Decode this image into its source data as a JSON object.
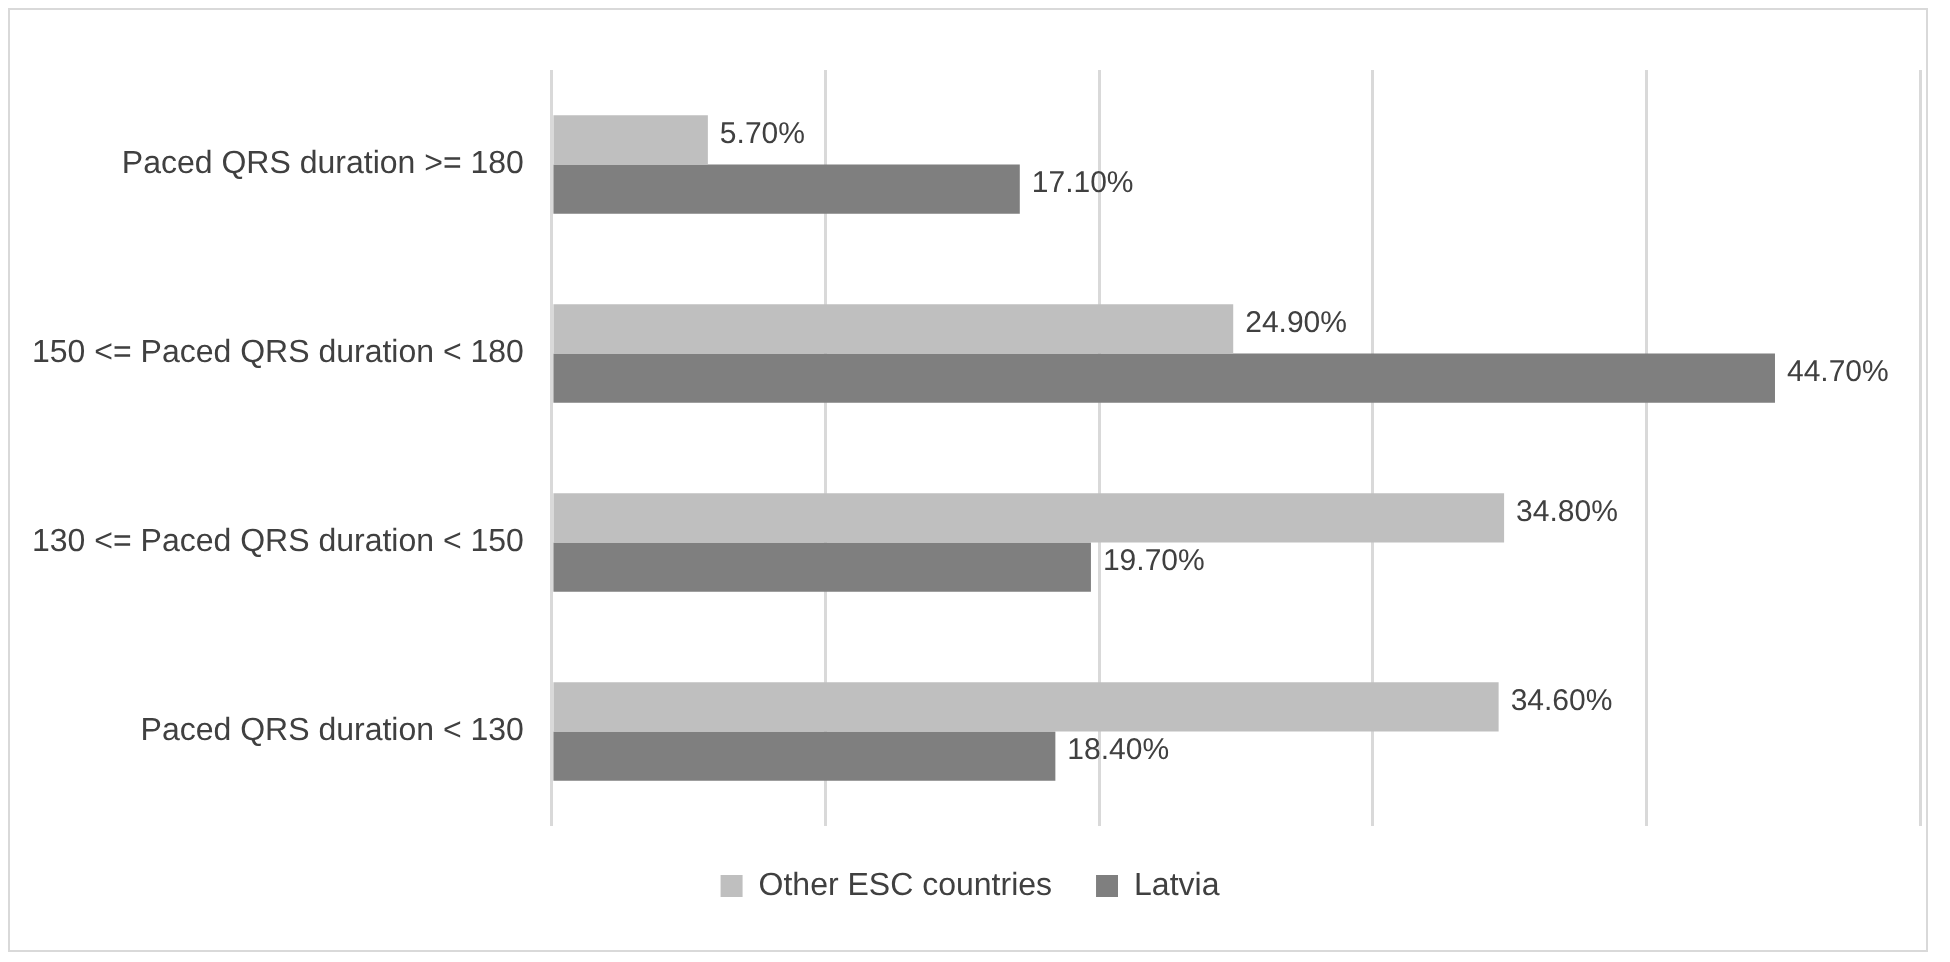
{
  "chart_data": {
    "type": "bar",
    "orientation": "horizontal",
    "categories": [
      "Paced QRS duration >= 180",
      "150 <= Paced QRS duration < 180",
      "130 <= Paced QRS duration < 150",
      "Paced QRS duration < 130"
    ],
    "series": [
      {
        "name": "Other ESC countries",
        "color": "#bfbfbf",
        "values": [
          5.7,
          24.9,
          34.8,
          34.6
        ],
        "value_labels": [
          "5.70%",
          "24.90%",
          "34.80%",
          "34.60%"
        ]
      },
      {
        "name": "Latvia",
        "color": "#7f7f7f",
        "values": [
          17.1,
          44.7,
          19.7,
          18.4
        ],
        "value_labels": [
          "17.10%",
          "44.70%",
          "19.70%",
          "18.40%"
        ]
      }
    ],
    "xlim": [
      0,
      50
    ],
    "xticks": [
      {
        "value": 0,
        "label": null
      },
      {
        "value": 10,
        "label": null
      },
      {
        "value": 20,
        "label": null
      },
      {
        "value": 30,
        "label": null
      },
      {
        "value": 40,
        "label": null
      },
      {
        "value": 50,
        "label": null
      }
    ],
    "tick_labels": "y",
    "grid": "x",
    "legend": "bottom"
  }
}
